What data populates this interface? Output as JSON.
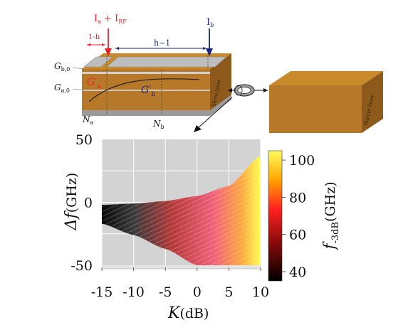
{
  "device": {
    "current_a_main": "I",
    "current_a_sub": "a",
    "current_plus": " + I",
    "current_rf_sub": "RF",
    "current_b_main": "I",
    "current_b_sub": "b",
    "section_a_length": "1-h",
    "section_b_length": "h~1",
    "gb0_main": "G",
    "gb0_sub": "b,0",
    "ga0_main": "G",
    "ga0_sub": "a,0",
    "ga_prime_main": "G′",
    "ga_prime_sub": "a",
    "gb_prime_main": "G′",
    "gb_prime_sub": "b",
    "na_main": "N",
    "na_sub": "a",
    "nb_main": "N",
    "nb_sub": "b",
    "slave_label": "Slave laser",
    "master_label": "Master laser"
  },
  "colors": {
    "current_a": "#e8202a",
    "current_b": "#1a237e",
    "block_top": "#c98a2c",
    "block_front": "#b8782a",
    "block_side": "#8e5a1c",
    "electrode": "#b8b8b8",
    "locked_region_low": "#1a1a1a",
    "locked_region_high": "#ffff40",
    "unlocked_region": "#d3d3d3"
  },
  "chart_data": {
    "type": "heatmap",
    "title": "",
    "xlabel_main": "K",
    "xlabel_unit": "(dB)",
    "ylabel_main": "Δf",
    "ylabel_unit": "(GHz)",
    "xlim": [
      -15,
      10
    ],
    "ylim": [
      -50,
      50
    ],
    "xticks": [
      -15,
      -10,
      -5,
      0,
      5,
      10
    ],
    "xtick_labels": [
      "-15",
      "-10",
      "-5",
      "0",
      "5",
      "10"
    ],
    "yticks": [
      50,
      0,
      -50
    ],
    "ytick_labels": [
      "50",
      "0",
      "-50"
    ],
    "colorbar": {
      "label_main": "f",
      "label_sub": "-3dB",
      "label_unit": "(GHz)",
      "range": [
        35,
        105
      ],
      "ticks": [
        100,
        80,
        60,
        40
      ],
      "tick_labels": [
        "100",
        "80",
        "60",
        "40"
      ],
      "colormap": "hot"
    },
    "locking_boundary": {
      "K": [
        -15,
        -10,
        -5,
        0,
        5,
        10
      ],
      "upper": [
        -2,
        -1,
        1,
        5,
        13,
        37
      ],
      "lower": [
        -17,
        -26,
        -37,
        -50,
        -50,
        -50
      ]
    },
    "gridlines": true
  }
}
